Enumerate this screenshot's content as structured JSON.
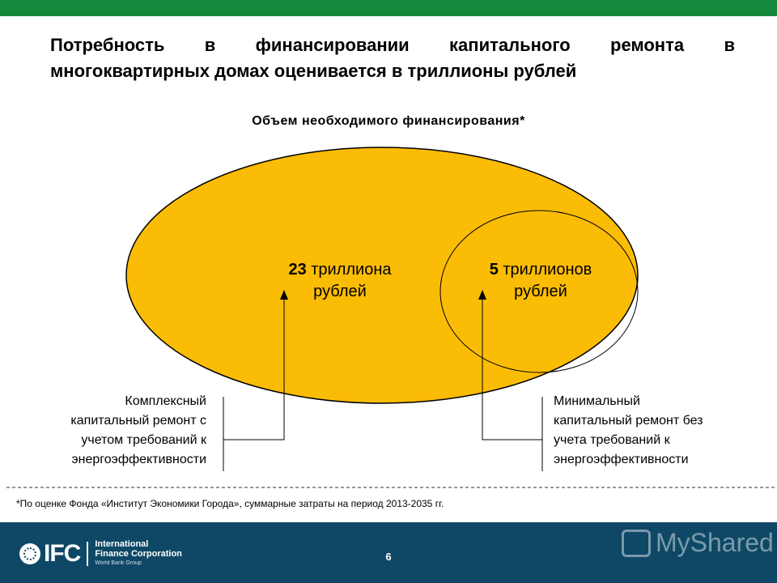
{
  "header": {
    "title_line1": "Потребность в финансировании капитального ремонта в",
    "title_line2": "многоквартирных домах оценивается в триллионы рублей"
  },
  "diagram": {
    "subtitle": "Объем необходимого финансирования*",
    "outer_value": "23",
    "outer_unit_line1": " триллиона",
    "outer_unit_line2": "рублей",
    "inner_value": "5",
    "inner_unit_line1": " триллионов",
    "inner_unit_line2": "рублей",
    "left_description": [
      "Комплексный",
      "капитальный ремонт с",
      "учетом требований к",
      "энергоэффективности"
    ],
    "right_description": [
      "Минимальный",
      "капитальный ремонт без",
      "учета требований к",
      "энергоэффективности"
    ],
    "colors": {
      "ellipse_fill": "#fbbc05",
      "top_bar": "#15893b",
      "footer": "#0e4866"
    }
  },
  "footnote": "*По оценке Фонда «Институт Экономики Города», суммарные затраты на период 2013-2035 гг.",
  "footer": {
    "logo_text": "IFC",
    "logo_name_line1": "International",
    "logo_name_line2": "Finance Corporation",
    "logo_name_line3": "World Bank Group",
    "page_number": "6",
    "watermark": "MyShared"
  }
}
